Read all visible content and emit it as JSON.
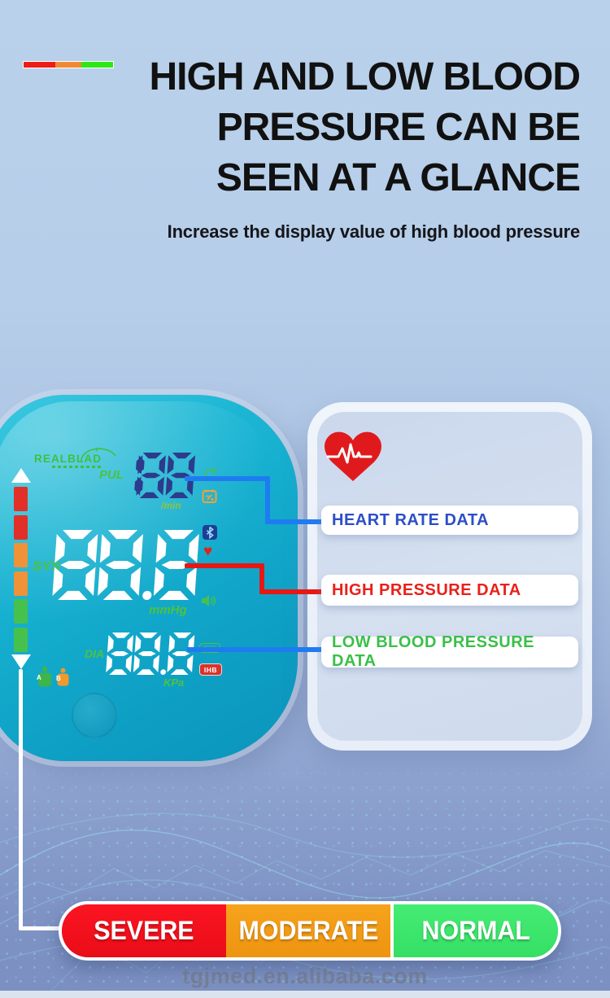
{
  "header": {
    "title_lines": [
      "HIGH AND LOW BLOOD",
      "PRESSURE CAN BE",
      "SEEN AT A GLANCE"
    ],
    "subtitle": "Increase the display value of high blood pressure",
    "scale_bar_colors": [
      "#ee1c16",
      "#ef8932",
      "#2ee813"
    ]
  },
  "device": {
    "brand": "REALBLAD",
    "pul": {
      "label": "PUL",
      "value": "188",
      "unit": "/min"
    },
    "sys": {
      "label": "SYS",
      "value": "88.8",
      "unit": "mmHg"
    },
    "dia": {
      "label": "DIA",
      "value": "88.8",
      "unit": "KPa"
    },
    "badges": {
      "avg": "AVG",
      "ihb": "IHB"
    },
    "users": [
      "A",
      "B"
    ],
    "icons": [
      "sync-icon",
      "calendar-icon",
      "bluetooth-icon",
      "heart-icon",
      "speaker-icon"
    ],
    "scale_colors": {
      "red": "#e03028",
      "orange": "#ef9238",
      "green": "#46c14e"
    },
    "body_color": "#12a9cb",
    "digit_colors": {
      "pul": "#2c3b8c",
      "sys": "#ffffff",
      "dia": "#ffffff"
    }
  },
  "panel": {
    "heart_icon": "heart-ecg-icon",
    "labels": [
      {
        "text": "HEART RATE DATA",
        "color": "#2d4ec6"
      },
      {
        "text": "HIGH PRESSURE DATA",
        "color": "#e8211a"
      },
      {
        "text": "LOW BLOOD PRESSURE DATA",
        "color": "#3abf49"
      }
    ]
  },
  "connectors": {
    "heart_rate_color": "#1f7cf0",
    "high_pressure_color": "#e51815",
    "low_pressure_color": "#1f7cf0",
    "severity_pointer_color": "#ffffff"
  },
  "severity_bar": {
    "segments": [
      {
        "label": "SEVERE",
        "color": "#f5111d"
      },
      {
        "label": "MODERATE",
        "color": "#f09a12"
      },
      {
        "label": "NORMAL",
        "color": "#3de76d"
      }
    ]
  },
  "watermark": "tgjmed.en.alibaba.com"
}
